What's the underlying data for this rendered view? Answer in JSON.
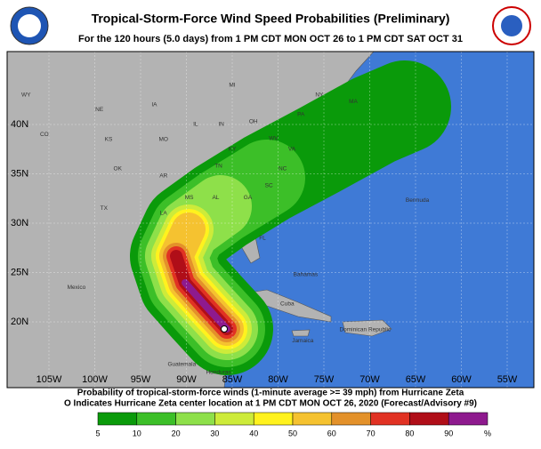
{
  "header": {
    "title": "Tropical-Storm-Force Wind Speed Probabilities (Preliminary)",
    "subtitle": "For the 120 hours (5.0 days) from 1 PM CDT MON OCT 26 to 1 PM CDT SAT OCT 31"
  },
  "map": {
    "lat_labels": [
      {
        "value": 40,
        "label": "40N"
      },
      {
        "value": 35,
        "label": "35N"
      },
      {
        "value": 30,
        "label": "30N"
      },
      {
        "value": 25,
        "label": "25N"
      },
      {
        "value": 20,
        "label": "20N"
      }
    ],
    "lon_labels": [
      {
        "value": -105,
        "label": "105W"
      },
      {
        "value": -100,
        "label": "100W"
      },
      {
        "value": -95,
        "label": "95W"
      },
      {
        "value": -90,
        "label": "90W"
      },
      {
        "value": -85,
        "label": "85W"
      },
      {
        "value": -80,
        "label": "80W"
      },
      {
        "value": -75,
        "label": "75W"
      },
      {
        "value": -70,
        "label": "70W"
      },
      {
        "value": -65,
        "label": "65W"
      },
      {
        "value": -60,
        "label": "60W"
      },
      {
        "value": -55,
        "label": "55W"
      }
    ],
    "places": [
      {
        "label": "WY",
        "lon": -107.5,
        "lat": 43
      },
      {
        "label": "NE",
        "lon": -99.5,
        "lat": 41.5
      },
      {
        "label": "IA",
        "lon": -93.5,
        "lat": 42
      },
      {
        "label": "MI",
        "lon": -85,
        "lat": 44
      },
      {
        "label": "NY",
        "lon": -75.5,
        "lat": 43
      },
      {
        "label": "MA",
        "lon": -71.8,
        "lat": 42.3
      },
      {
        "label": "CO",
        "lon": -105.5,
        "lat": 39
      },
      {
        "label": "KS",
        "lon": -98.5,
        "lat": 38.5
      },
      {
        "label": "MO",
        "lon": -92.5,
        "lat": 38.5
      },
      {
        "label": "IL",
        "lon": -89,
        "lat": 40
      },
      {
        "label": "IN",
        "lon": -86.2,
        "lat": 40
      },
      {
        "label": "OH",
        "lon": -82.7,
        "lat": 40.3
      },
      {
        "label": "PA",
        "lon": -77.5,
        "lat": 41
      },
      {
        "label": "WV",
        "lon": -80.5,
        "lat": 38.6
      },
      {
        "label": "VA",
        "lon": -78.5,
        "lat": 37.5
      },
      {
        "label": "KY",
        "lon": -85,
        "lat": 37.5
      },
      {
        "label": "OK",
        "lon": -97.5,
        "lat": 35.5
      },
      {
        "label": "TN",
        "lon": -86.5,
        "lat": 35.8
      },
      {
        "label": "NC",
        "lon": -79.5,
        "lat": 35.5
      },
      {
        "label": "AR",
        "lon": -92.5,
        "lat": 34.8
      },
      {
        "label": "SC",
        "lon": -81,
        "lat": 33.8
      },
      {
        "label": "TX",
        "lon": -99,
        "lat": 31.5
      },
      {
        "label": "MS",
        "lon": -89.7,
        "lat": 32.6
      },
      {
        "label": "AL",
        "lon": -86.8,
        "lat": 32.6
      },
      {
        "label": "GA",
        "lon": -83.3,
        "lat": 32.6
      },
      {
        "label": "LA",
        "lon": -92.5,
        "lat": 31
      },
      {
        "label": "FL",
        "lon": -81.7,
        "lat": 28.5
      },
      {
        "label": "Bermuda",
        "lon": -64.8,
        "lat": 32.3
      },
      {
        "label": "Bahamas",
        "lon": -77,
        "lat": 24.8
      },
      {
        "label": "Mexico",
        "lon": -102,
        "lat": 23.5
      },
      {
        "label": "Cuba",
        "lon": -79,
        "lat": 21.8
      },
      {
        "label": "Jamaica",
        "lon": -77.3,
        "lat": 18.1
      },
      {
        "label": "Dominican Republic",
        "lon": -70.5,
        "lat": 19.2
      },
      {
        "label": "Guatemala",
        "lon": -90.5,
        "lat": 15.7
      },
      {
        "label": "Honduras",
        "lon": -86.5,
        "lat": 14.9
      }
    ]
  },
  "footer": {
    "line1": "Probability of tropical-storm-force winds (1-minute average >= 39 mph) from Hurricane Zeta",
    "line2": "O Indicates Hurricane Zeta center location at 1 PM CDT MON OCT 26, 2020 (Forecast/Advisory #9)"
  },
  "legend": {
    "labels": [
      "5",
      "10",
      "20",
      "30",
      "40",
      "50",
      "60",
      "70",
      "80",
      "90",
      "%"
    ],
    "colors": [
      "#0a9a0a",
      "#3cbf28",
      "#8ee04a",
      "#cdeb3a",
      "#fff21e",
      "#f5c230",
      "#e3912a",
      "#e13223",
      "#b00e18",
      "#8e1a8e"
    ]
  }
}
